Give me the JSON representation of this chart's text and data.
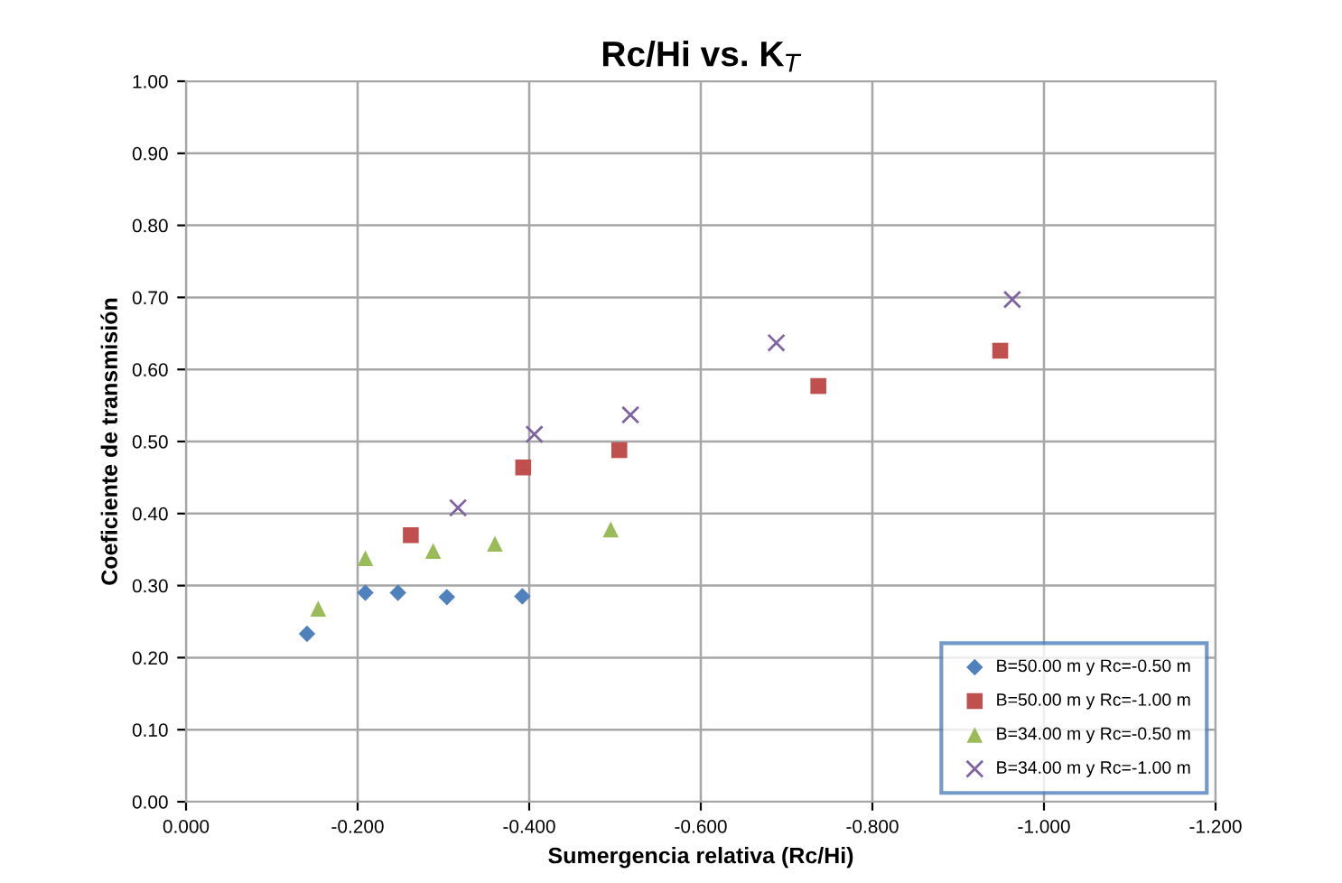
{
  "chart_data": {
    "type": "scatter",
    "title": "Rc/Hi vs. K$_{T}$",
    "xlabel": "Sumergencia relativa (Rc/Hi)",
    "ylabel": "Coeficiente de transmisión",
    "xlim": [
      0,
      -1.2
    ],
    "ylim": [
      0,
      1.0
    ],
    "xticks": [
      {
        "value": 0,
        "label": "0.000"
      },
      {
        "value": -0.2,
        "label": "-0.200"
      },
      {
        "value": -0.4,
        "label": "-0.400"
      },
      {
        "value": -0.6,
        "label": "-0.600"
      },
      {
        "value": -0.8,
        "label": "-0.800"
      },
      {
        "value": -1.0,
        "label": "-1.000"
      },
      {
        "value": -1.2,
        "label": "-1.200"
      }
    ],
    "yticks": [
      {
        "value": 0,
        "label": "0.00"
      },
      {
        "value": 0.1,
        "label": "0.10"
      },
      {
        "value": 0.2,
        "label": "0.20"
      },
      {
        "value": 0.3,
        "label": "0.30"
      },
      {
        "value": 0.4,
        "label": "0.40"
      },
      {
        "value": 0.5,
        "label": "0.50"
      },
      {
        "value": 0.6,
        "label": "0.60"
      },
      {
        "value": 0.7,
        "label": "0.70"
      },
      {
        "value": 0.8,
        "label": "0.80"
      },
      {
        "value": 0.9,
        "label": "0.90"
      },
      {
        "value": 1.0,
        "label": "1.00"
      }
    ],
    "grid": true,
    "legend": "bottom right",
    "series": [
      {
        "name": "B=50.00 m y Rc=-0.50 m",
        "color": "#4f81bd",
        "marker": "diamond",
        "x": [
          -0.141,
          -0.209,
          -0.247,
          -0.304,
          -0.392
        ],
        "values": [
          0.233,
          0.29,
          0.29,
          0.284,
          0.285
        ]
      },
      {
        "name": "B=50.00 m y Rc=-1.00 m",
        "color": "#c0504d",
        "marker": "square",
        "x": [
          -0.262,
          -0.393,
          -0.505,
          -0.737,
          -0.949
        ],
        "values": [
          0.37,
          0.464,
          0.488,
          0.577,
          0.626
        ]
      },
      {
        "name": "B=34.00 m y Rc=-0.50 m",
        "color": "#9bbb59",
        "marker": "triangle",
        "x": [
          -0.154,
          -0.209,
          -0.288,
          -0.36,
          -0.495
        ],
        "values": [
          0.268,
          0.338,
          0.348,
          0.358,
          0.378
        ]
      },
      {
        "name": "B=34.00 m y Rc=-1.00 m",
        "color": "#8064a2",
        "marker": "cross",
        "x": [
          -0.317,
          -0.406,
          -0.518,
          -0.688,
          -0.963
        ],
        "values": [
          0.408,
          0.51,
          0.537,
          0.637,
          0.697
        ]
      }
    ]
  }
}
